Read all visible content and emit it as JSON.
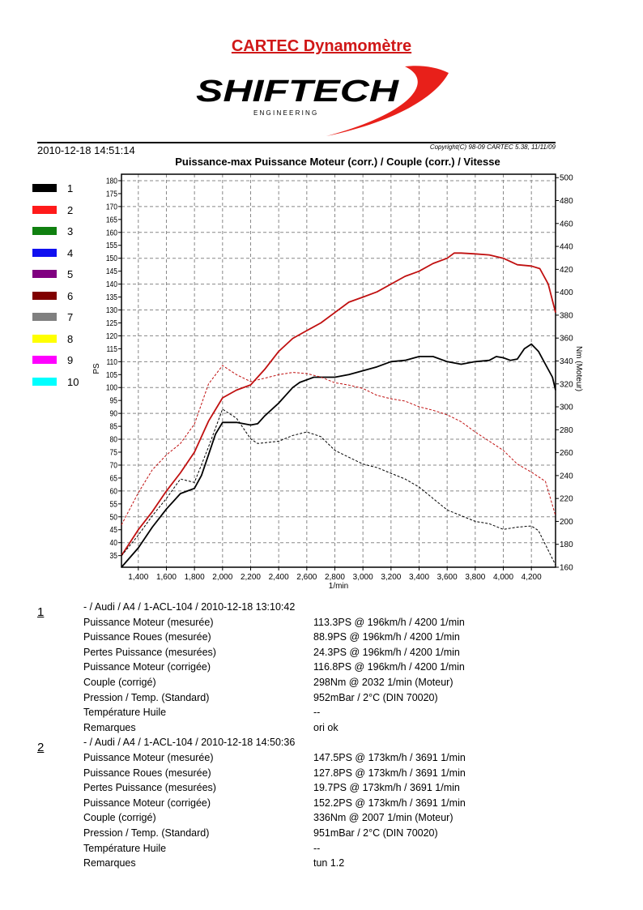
{
  "header": {
    "title": "CARTEC Dynamomètre",
    "logo_text": "SHIFTECH",
    "logo_sub": "E N G I N E E R I N G",
    "date": "2010-12-18 14:51:14",
    "copyright": "Copyright(C) 98-09 CARTEC 5.38, 11/11/09"
  },
  "legend": [
    {
      "label": "1",
      "color": "#000000"
    },
    {
      "label": "2",
      "color": "#ff1a1a"
    },
    {
      "label": "3",
      "color": "#108010"
    },
    {
      "label": "4",
      "color": "#1010f0"
    },
    {
      "label": "5",
      "color": "#800080"
    },
    {
      "label": "6",
      "color": "#800000"
    },
    {
      "label": "7",
      "color": "#808080"
    },
    {
      "label": "8",
      "color": "#ffff00"
    },
    {
      "label": "9",
      "color": "#ff00ff"
    },
    {
      "label": "10",
      "color": "#00ffff"
    }
  ],
  "chart_data": {
    "type": "line",
    "title": "Puissance-max Puissance Moteur (corr.) / Couple (corr.) / Vitesse",
    "xlabel": "1/min",
    "ylabel": "PS",
    "y2label": "Nm (Moteur)",
    "xlim": [
      1280,
      4372
    ],
    "ylim": [
      30.5,
      182.5
    ],
    "y2lim": [
      160,
      503
    ],
    "xticks": [
      1400,
      1600,
      1800,
      2000,
      2200,
      2400,
      2600,
      2800,
      3000,
      3200,
      3400,
      3600,
      3800,
      4000,
      4200
    ],
    "xtick_labels": [
      "1,400",
      "1,600",
      "1,800",
      "2,000",
      "2,200",
      "2,400",
      "2,600",
      "2,800",
      "3,000",
      "3,200",
      "3,400",
      "3,600",
      "3,800",
      "4,000",
      "4,200"
    ],
    "yticks": [
      35,
      40,
      45,
      50,
      55,
      60,
      65,
      70,
      75,
      80,
      85,
      90,
      95,
      100,
      105,
      110,
      115,
      120,
      125,
      130,
      135,
      140,
      145,
      150,
      155,
      160,
      165,
      170,
      175,
      180
    ],
    "y2ticks": [
      160,
      180,
      200,
      220,
      240,
      260,
      280,
      300,
      320,
      340,
      360,
      380,
      400,
      420,
      440,
      460,
      480,
      500
    ],
    "grid": true,
    "series": [
      {
        "name": "1 Puissance",
        "axis": "left",
        "color": "#000000",
        "dash": false,
        "points": [
          [
            1280,
            30.5
          ],
          [
            1400,
            38
          ],
          [
            1500,
            46
          ],
          [
            1600,
            53
          ],
          [
            1700,
            59
          ],
          [
            1750,
            60
          ],
          [
            1800,
            61
          ],
          [
            1850,
            66
          ],
          [
            1900,
            74
          ],
          [
            1950,
            82
          ],
          [
            2000,
            86.5
          ],
          [
            2100,
            86.5
          ],
          [
            2200,
            85.5
          ],
          [
            2250,
            86
          ],
          [
            2300,
            89
          ],
          [
            2400,
            94
          ],
          [
            2500,
            100
          ],
          [
            2550,
            102
          ],
          [
            2650,
            104
          ],
          [
            2800,
            104
          ],
          [
            2900,
            105
          ],
          [
            3000,
            106.5
          ],
          [
            3100,
            108
          ],
          [
            3200,
            110
          ],
          [
            3300,
            110.5
          ],
          [
            3400,
            112
          ],
          [
            3500,
            112
          ],
          [
            3600,
            110
          ],
          [
            3700,
            109
          ],
          [
            3800,
            110
          ],
          [
            3900,
            110.5
          ],
          [
            3950,
            112
          ],
          [
            4000,
            111.5
          ],
          [
            4050,
            110.5
          ],
          [
            4100,
            111
          ],
          [
            4150,
            115
          ],
          [
            4200,
            116.8
          ],
          [
            4250,
            114
          ],
          [
            4300,
            109
          ],
          [
            4350,
            104
          ],
          [
            4372,
            99
          ]
        ]
      },
      {
        "name": "2 Puissance",
        "axis": "left",
        "color": "#c01010",
        "dash": false,
        "points": [
          [
            1280,
            35
          ],
          [
            1400,
            45
          ],
          [
            1500,
            52
          ],
          [
            1600,
            60
          ],
          [
            1700,
            67
          ],
          [
            1800,
            75
          ],
          [
            1900,
            87
          ],
          [
            2000,
            96
          ],
          [
            2100,
            99
          ],
          [
            2200,
            101
          ],
          [
            2300,
            107
          ],
          [
            2400,
            114
          ],
          [
            2500,
            119
          ],
          [
            2600,
            122
          ],
          [
            2700,
            125
          ],
          [
            2800,
            129
          ],
          [
            2900,
            133
          ],
          [
            3000,
            135
          ],
          [
            3100,
            137
          ],
          [
            3200,
            140
          ],
          [
            3300,
            143
          ],
          [
            3400,
            145
          ],
          [
            3500,
            148
          ],
          [
            3600,
            150
          ],
          [
            3650,
            152
          ],
          [
            3700,
            152
          ],
          [
            3800,
            151.7
          ],
          [
            3900,
            151.3
          ],
          [
            4000,
            150
          ],
          [
            4100,
            147.5
          ],
          [
            4200,
            147
          ],
          [
            4260,
            146
          ],
          [
            4320,
            140
          ],
          [
            4372,
            129
          ]
        ]
      },
      {
        "name": "1 Couple",
        "axis": "right",
        "color": "#000000",
        "dash": true,
        "points": [
          [
            1280,
            170
          ],
          [
            1400,
            188
          ],
          [
            1500,
            205
          ],
          [
            1600,
            220
          ],
          [
            1700,
            237
          ],
          [
            1800,
            234
          ],
          [
            1900,
            265
          ],
          [
            2000,
            298
          ],
          [
            2100,
            290
          ],
          [
            2200,
            272
          ],
          [
            2250,
            268
          ],
          [
            2400,
            270
          ],
          [
            2500,
            275
          ],
          [
            2600,
            278
          ],
          [
            2700,
            274
          ],
          [
            2800,
            262
          ],
          [
            2900,
            256
          ],
          [
            3000,
            250
          ],
          [
            3100,
            247
          ],
          [
            3200,
            242
          ],
          [
            3300,
            237
          ],
          [
            3400,
            230
          ],
          [
            3500,
            220
          ],
          [
            3600,
            210
          ],
          [
            3700,
            205
          ],
          [
            3800,
            200
          ],
          [
            3900,
            198
          ],
          [
            4000,
            193
          ],
          [
            4100,
            195
          ],
          [
            4200,
            196
          ],
          [
            4250,
            192
          ],
          [
            4372,
            162
          ]
        ]
      },
      {
        "name": "2 Couple",
        "axis": "right",
        "color": "#c01010",
        "dash": true,
        "points": [
          [
            1280,
            197
          ],
          [
            1400,
            225
          ],
          [
            1500,
            245
          ],
          [
            1600,
            258
          ],
          [
            1700,
            268
          ],
          [
            1800,
            285
          ],
          [
            1900,
            320
          ],
          [
            2000,
            336
          ],
          [
            2100,
            328
          ],
          [
            2200,
            322
          ],
          [
            2300,
            325
          ],
          [
            2400,
            328
          ],
          [
            2500,
            330
          ],
          [
            2600,
            329
          ],
          [
            2700,
            326
          ],
          [
            2800,
            321
          ],
          [
            2900,
            319
          ],
          [
            3000,
            316
          ],
          [
            3100,
            310
          ],
          [
            3200,
            307
          ],
          [
            3300,
            305
          ],
          [
            3400,
            300
          ],
          [
            3500,
            297
          ],
          [
            3600,
            293
          ],
          [
            3700,
            287
          ],
          [
            3800,
            278
          ],
          [
            3900,
            270
          ],
          [
            4000,
            262
          ],
          [
            4100,
            250
          ],
          [
            4200,
            243
          ],
          [
            4300,
            235
          ],
          [
            4372,
            205
          ]
        ]
      }
    ]
  },
  "runs": [
    {
      "number": "1",
      "header": "- / Audi / A4 / 1-ACL-104 / 2010-12-18 13:10:42",
      "rows": [
        [
          "Puissance Moteur (mesurée)",
          "113.3PS @ 196km/h / 4200 1/min"
        ],
        [
          "Puissance Roues (mesurée)",
          "88.9PS @ 196km/h / 4200 1/min"
        ],
        [
          "Pertes Puissance (mesurées)",
          "24.3PS @ 196km/h / 4200 1/min"
        ],
        [
          "Puissance Moteur (corrigée)",
          "116.8PS @ 196km/h / 4200 1/min"
        ],
        [
          "Couple (corrigé)",
          "298Nm @ 2032 1/min (Moteur)"
        ],
        [
          "Pression / Temp. (Standard)",
          "952mBar / 2°C    (DIN 70020)"
        ],
        [
          "Température Huile",
          "--"
        ],
        [
          "Remarques",
          "ori ok"
        ]
      ]
    },
    {
      "number": "2",
      "header": "- / Audi / A4 / 1-ACL-104 / 2010-12-18 14:50:36",
      "rows": [
        [
          "Puissance Moteur (mesurée)",
          "147.5PS @ 173km/h / 3691 1/min"
        ],
        [
          "Puissance Roues (mesurée)",
          "127.8PS @ 173km/h / 3691 1/min"
        ],
        [
          "Pertes Puissance (mesurées)",
          "19.7PS @ 173km/h / 3691 1/min"
        ],
        [
          "Puissance Moteur (corrigée)",
          "152.2PS @ 173km/h / 3691 1/min"
        ],
        [
          "Couple (corrigé)",
          "336Nm @ 2007 1/min (Moteur)"
        ],
        [
          "Pression / Temp. (Standard)",
          "951mBar / 2°C    (DIN 70020)"
        ],
        [
          "Température Huile",
          "--"
        ],
        [
          "Remarques",
          "tun 1.2"
        ]
      ]
    }
  ]
}
